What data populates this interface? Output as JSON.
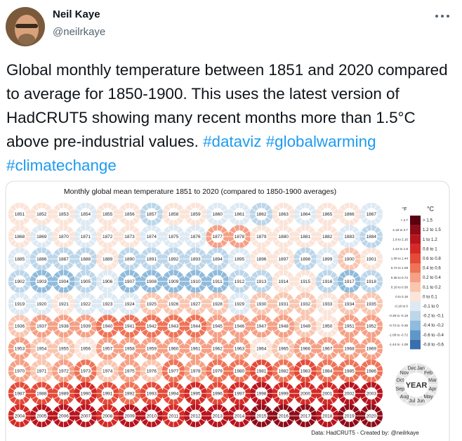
{
  "tweet": {
    "name": "Neil Kaye",
    "handle": "@neilrkaye",
    "text": "Global monthly temperature between 1851 and 2020 compared to average for 1850-1900. This uses the latest version of HadCRUT5 showing many recent months more than 1.5°C above pre-industrial values.",
    "hashtags": [
      "#dataviz",
      "#globalwarming",
      "#climatechange"
    ]
  },
  "chart_data": {
    "type": "donut-grid",
    "title": "Monthly global mean temperature 1851 to 2020 (compared to 1850-1900 averages)",
    "categories": [
      "1851",
      "1852",
      "1853",
      "1854",
      "1855",
      "1856",
      "1857",
      "1858",
      "1859",
      "1860",
      "1861",
      "1862",
      "1863",
      "1864",
      "1865",
      "1866",
      "1867",
      "1868",
      "1869",
      "1870",
      "1871",
      "1872",
      "1873",
      "1874",
      "1875",
      "1876",
      "1877",
      "1878",
      "1879",
      "1880",
      "1881",
      "1882",
      "1883",
      "1884",
      "1885",
      "1886",
      "1887",
      "1888",
      "1889",
      "1890",
      "1891",
      "1892",
      "1893",
      "1894",
      "1895",
      "1896",
      "1897",
      "1898",
      "1899",
      "1900",
      "1901",
      "1902",
      "1903",
      "1904",
      "1905",
      "1906",
      "1907",
      "1908",
      "1909",
      "1910",
      "1911",
      "1912",
      "1913",
      "1914",
      "1915",
      "1916",
      "1917",
      "1918",
      "1919",
      "1920",
      "1921",
      "1922",
      "1923",
      "1924",
      "1925",
      "1926",
      "1927",
      "1928",
      "1929",
      "1930",
      "1931",
      "1932",
      "1933",
      "1934",
      "1935",
      "1936",
      "1937",
      "1938",
      "1939",
      "1940",
      "1941",
      "1942",
      "1943",
      "1944",
      "1945",
      "1946",
      "1947",
      "1948",
      "1949",
      "1950",
      "1951",
      "1952",
      "1953",
      "1954",
      "1955",
      "1956",
      "1957",
      "1958",
      "1959",
      "1960",
      "1961",
      "1962",
      "1963",
      "1964",
      "1965",
      "1966",
      "1967",
      "1968",
      "1969",
      "1970",
      "1971",
      "1972",
      "1973",
      "1974",
      "1975",
      "1976",
      "1977",
      "1978",
      "1979",
      "1980",
      "1981",
      "1982",
      "1983",
      "1984",
      "1985",
      "1986",
      "1987",
      "1988",
      "1989",
      "1990",
      "1991",
      "1992",
      "1993",
      "1994",
      "1995",
      "1996",
      "1997",
      "1998",
      "1999",
      "2000",
      "2001",
      "2002",
      "2003",
      "2004",
      "2005",
      "2006",
      "2007",
      "2008",
      "2009",
      "2010",
      "2011",
      "2012",
      "2013",
      "2014",
      "2015",
      "2016",
      "2017",
      "2018",
      "2019",
      "2020"
    ],
    "values": [
      0.05,
      0.05,
      0.05,
      -0.05,
      0.0,
      0.0,
      -0.15,
      0.0,
      0.05,
      -0.1,
      -0.1,
      -0.2,
      0.0,
      -0.1,
      0.0,
      0.05,
      -0.05,
      0.05,
      -0.05,
      0.0,
      -0.1,
      0.0,
      0.0,
      -0.05,
      -0.1,
      -0.1,
      0.3,
      0.35,
      0.0,
      0.0,
      0.05,
      0.0,
      -0.05,
      -0.15,
      -0.1,
      -0.15,
      -0.2,
      -0.15,
      0.05,
      -0.2,
      -0.15,
      -0.2,
      -0.2,
      -0.15,
      -0.1,
      0.0,
      0.0,
      -0.2,
      -0.05,
      0.1,
      0.0,
      -0.15,
      -0.25,
      -0.35,
      -0.15,
      -0.1,
      -0.25,
      -0.3,
      -0.3,
      -0.3,
      -0.3,
      -0.2,
      -0.2,
      0.0,
      0.05,
      -0.15,
      -0.3,
      -0.2,
      -0.05,
      -0.05,
      0.05,
      -0.05,
      -0.05,
      -0.05,
      0.1,
      0.15,
      0.1,
      0.1,
      -0.05,
      0.15,
      0.15,
      0.15,
      0.0,
      0.15,
      0.1,
      0.15,
      0.25,
      0.35,
      0.3,
      0.4,
      0.45,
      0.4,
      0.4,
      0.5,
      0.35,
      0.2,
      0.2,
      0.2,
      0.15,
      0.05,
      0.25,
      0.3,
      0.35,
      0.15,
      0.15,
      0.05,
      0.3,
      0.35,
      0.3,
      0.25,
      0.35,
      0.35,
      0.35,
      0.05,
      0.15,
      0.2,
      0.25,
      0.2,
      0.35,
      0.3,
      0.15,
      0.25,
      0.45,
      0.15,
      0.2,
      0.1,
      0.45,
      0.3,
      0.45,
      0.55,
      0.65,
      0.45,
      0.65,
      0.45,
      0.45,
      0.5,
      0.65,
      0.75,
      0.6,
      0.8,
      0.75,
      0.55,
      0.6,
      0.65,
      0.8,
      0.7,
      0.85,
      1.05,
      0.8,
      0.8,
      0.95,
      1.0,
      1.0,
      0.95,
      1.05,
      1.0,
      1.05,
      0.9,
      1.0,
      1.1,
      0.95,
      1.0,
      1.05,
      1.1,
      1.25,
      1.35,
      1.25,
      1.15,
      1.3,
      1.3
    ],
    "legend": {
      "f_header": "°F",
      "c_header": "°C",
      "f_labels": [
        "> 2.7",
        "2.16 to 2.7",
        "1.8 to 2.16",
        "1.44 to 1.8",
        "1.08 to 1.44",
        "0.72 to 1.08",
        "0.36 to 0.72",
        "0.18 to 0.36",
        "0 to 0.18",
        "-0.18 to 0",
        "-0.36 to -0.18",
        "-0.72 to -0.36",
        "-1.08 to -0.72",
        "-1.44 to -1.08"
      ],
      "c_labels": [
        "> 1.5",
        "1.2 to 1.5",
        "1 to 1.2",
        "0.8 to 1",
        "0.6 to 0.8",
        "0.4 to 0.6",
        "0.2 to 0.4",
        "0.1 to 0.2",
        "0 to 0.1",
        "-0.1 to 0",
        "-0.2 to -0.1",
        "-0.4 to -0.2",
        "-0.6 to -0.4",
        "-0.8 to -0.6"
      ],
      "c_lower_edges": [
        1.5,
        1.2,
        1,
        0.8,
        0.6,
        0.4,
        0.2,
        0.1,
        0,
        -0.1,
        -0.2,
        -0.4,
        -0.6,
        -0.8
      ],
      "colors": [
        "#5a0010",
        "#8e0c18",
        "#b8141e",
        "#d42a26",
        "#e54a38",
        "#ef7356",
        "#f6a085",
        "#f9c6b0",
        "#fbe4d8",
        "#dde9f3",
        "#bcd6ea",
        "#8fbbdc",
        "#5f97c8",
        "#3a6fae"
      ]
    },
    "months": [
      "Jan",
      "Feb",
      "Mar",
      "Apr",
      "May",
      "Jun",
      "Jul",
      "Aug",
      "Sep",
      "Oct",
      "Nov",
      "Dec"
    ],
    "wheel_center": "YEAR",
    "source": "Data: HadCRUT5  -  Created by: @neilrkaye"
  }
}
